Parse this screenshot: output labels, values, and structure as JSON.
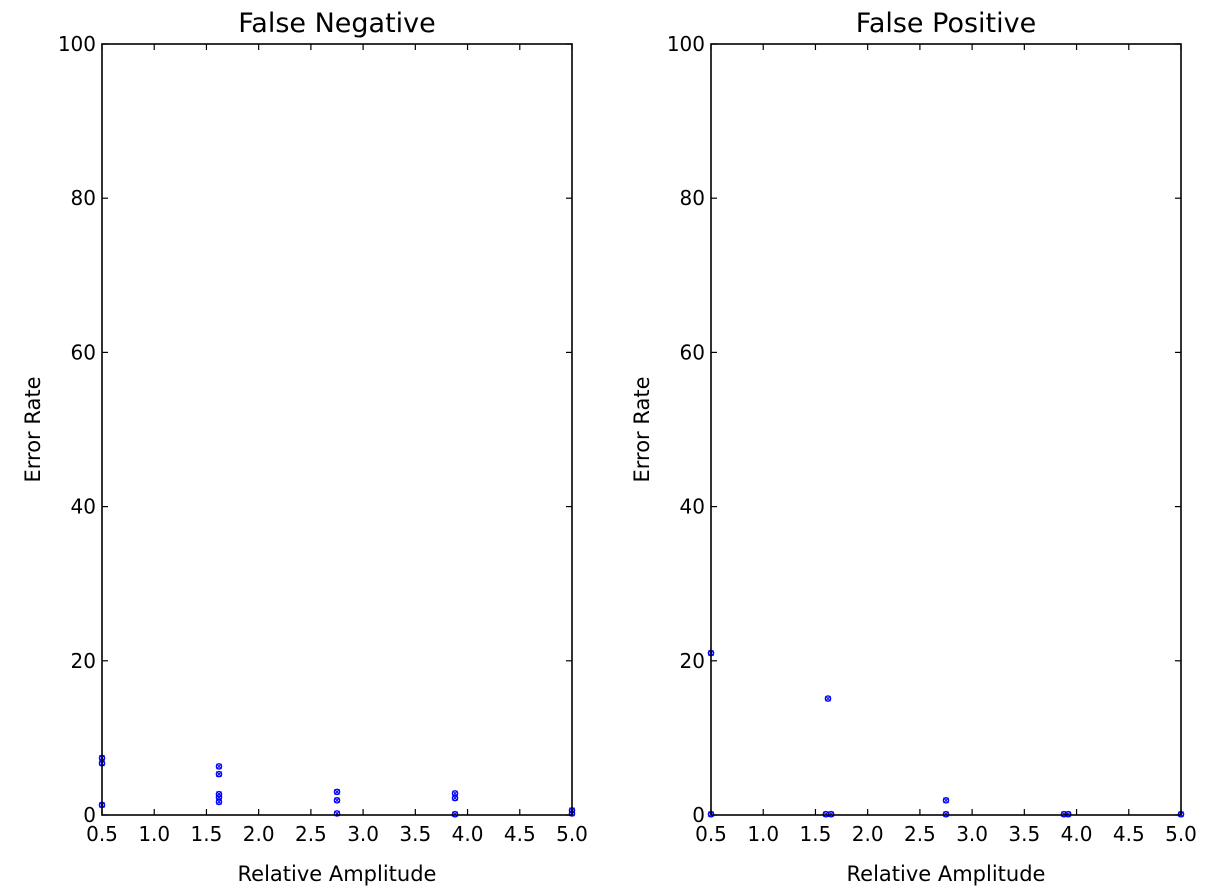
{
  "chart_data": [
    {
      "type": "scatter",
      "title": "False Negative",
      "xlabel": "Relative Amplitude",
      "ylabel": "Error Rate",
      "xlim": [
        0.5,
        5.0
      ],
      "ylim": [
        0,
        100
      ],
      "xticks": [
        "0.5",
        "1.0",
        "1.5",
        "2.0",
        "2.5",
        "3.0",
        "3.5",
        "4.0",
        "4.5",
        "5.0"
      ],
      "yticks": [
        "0",
        "20",
        "40",
        "60",
        "80",
        "100"
      ],
      "grid": false,
      "marker_color": "#0000ff",
      "points": [
        {
          "x": 0.5,
          "y": 7.4
        },
        {
          "x": 0.5,
          "y": 6.7
        },
        {
          "x": 0.5,
          "y": 1.3
        },
        {
          "x": 1.62,
          "y": 6.3
        },
        {
          "x": 1.62,
          "y": 5.3
        },
        {
          "x": 1.62,
          "y": 2.7
        },
        {
          "x": 1.62,
          "y": 2.3
        },
        {
          "x": 1.62,
          "y": 1.7
        },
        {
          "x": 2.75,
          "y": 3.0
        },
        {
          "x": 2.75,
          "y": 1.9
        },
        {
          "x": 2.75,
          "y": 0.2
        },
        {
          "x": 3.88,
          "y": 2.8
        },
        {
          "x": 3.88,
          "y": 2.2
        },
        {
          "x": 3.88,
          "y": 0.1
        },
        {
          "x": 5.0,
          "y": 0.6
        },
        {
          "x": 5.0,
          "y": 0.2
        }
      ]
    },
    {
      "type": "scatter",
      "title": "False Positive",
      "xlabel": "Relative Amplitude",
      "ylabel": "Error Rate",
      "xlim": [
        0.5,
        5.0
      ],
      "ylim": [
        0,
        100
      ],
      "xticks": [
        "0.5",
        "1.0",
        "1.5",
        "2.0",
        "2.5",
        "3.0",
        "3.5",
        "4.0",
        "4.5",
        "5.0"
      ],
      "yticks": [
        "0",
        "20",
        "40",
        "60",
        "80",
        "100"
      ],
      "grid": false,
      "marker_color": "#0000ff",
      "points": [
        {
          "x": 0.5,
          "y": 21.0
        },
        {
          "x": 0.5,
          "y": 0.1
        },
        {
          "x": 1.62,
          "y": 15.1
        },
        {
          "x": 1.6,
          "y": 0.1
        },
        {
          "x": 1.65,
          "y": 0.1
        },
        {
          "x": 2.75,
          "y": 1.9
        },
        {
          "x": 2.75,
          "y": 0.1
        },
        {
          "x": 3.88,
          "y": 0.1
        },
        {
          "x": 3.92,
          "y": 0.1
        },
        {
          "x": 5.0,
          "y": 0.1
        }
      ]
    }
  ]
}
